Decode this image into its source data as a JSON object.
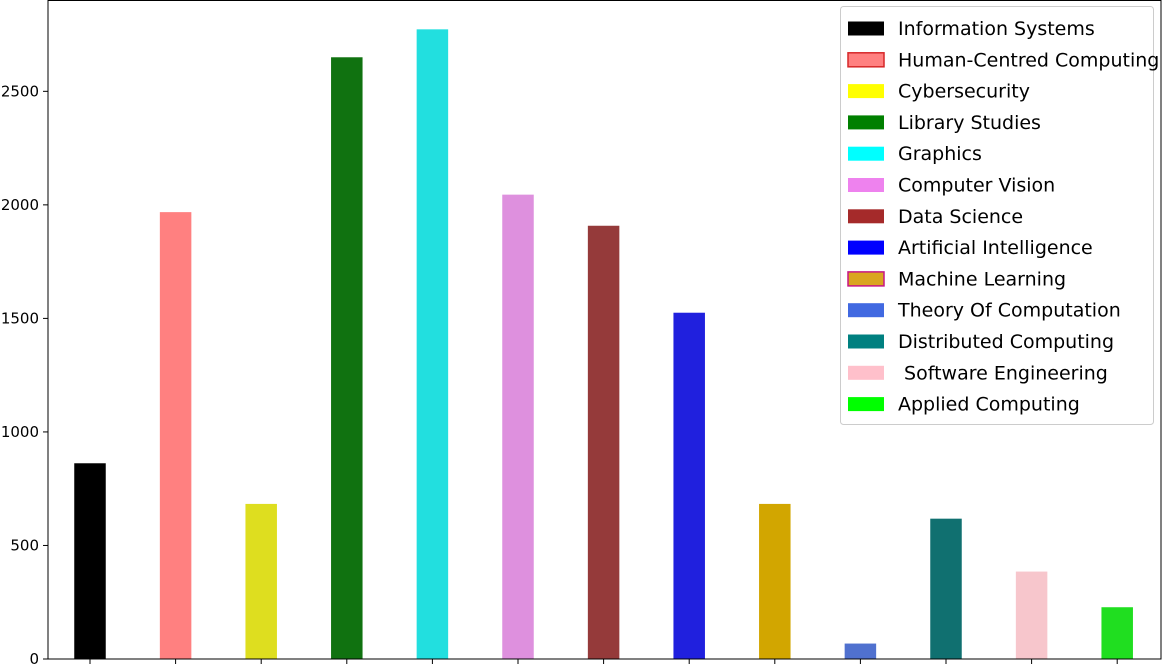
{
  "chart_data": {
    "type": "bar",
    "categories": [
      "Information Systems",
      "Human-Centred Computing",
      "Cybersecurity",
      "Library Studies",
      "Graphics",
      "Computer Vision",
      "Data Science",
      "Artificial Intelligence",
      "Machine Learning",
      "Theory Of Computation",
      "Distributed Computing",
      " Software Engineering",
      "Applied Computing"
    ],
    "values": [
      862,
      1968,
      683,
      2650,
      2773,
      2045,
      1908,
      1525,
      683,
      68,
      618,
      385,
      228
    ],
    "bar_colors": [
      "#000000",
      "#ff8080",
      "#dede1f",
      "#107210",
      "#22dfdf",
      "#de90de",
      "#953a3a",
      "#2020de",
      "#d2a600",
      "#5071cf",
      "#107070",
      "#f7c6cc",
      "#20de20"
    ],
    "legend_colors": [
      "#000000",
      "#ff8080",
      "#ffff00",
      "#008000",
      "#00ffff",
      "#ee82ee",
      "#a52a2a",
      "#0000ff",
      "#daa520",
      "#4169e1",
      "#008080",
      "#ffc0cb",
      "#00ff00"
    ],
    "legend_edge_colors": [
      null,
      "#d62728",
      null,
      null,
      null,
      null,
      null,
      null,
      "#c71585",
      null,
      null,
      null,
      null
    ],
    "title": "",
    "xlabel": "",
    "ylabel": "",
    "ylim": [
      0,
      2900
    ],
    "yticks": [
      0,
      500,
      1000,
      1500,
      2000,
      2500
    ],
    "ytick_labels": [
      "0",
      "500",
      "1000",
      "1500",
      "2000",
      "2500"
    ],
    "grid": false,
    "legend_position": "top-right"
  }
}
